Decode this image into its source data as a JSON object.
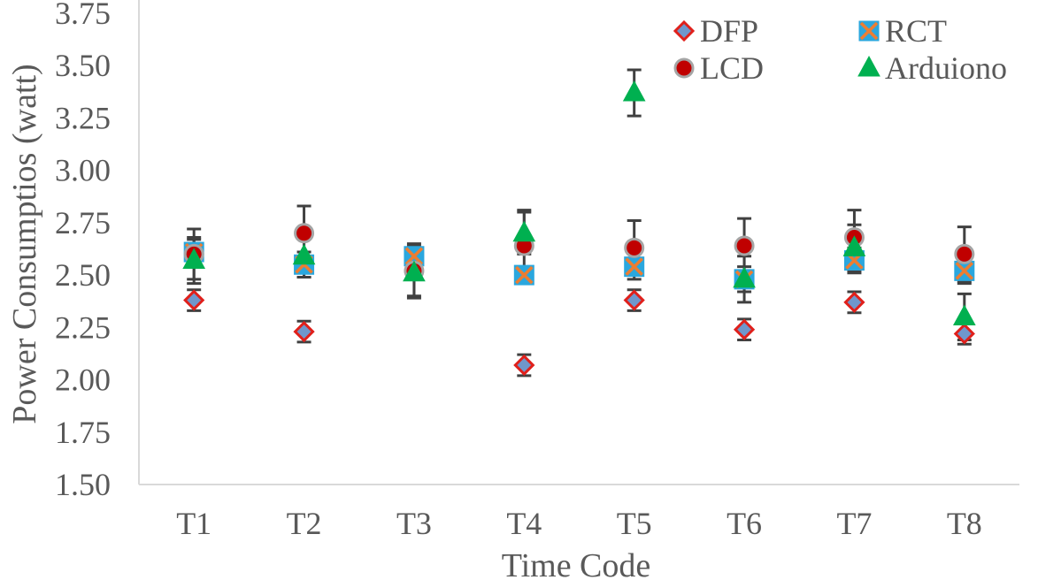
{
  "chart_data": {
    "type": "scatter",
    "title": "",
    "xlabel": "Time Code",
    "ylabel": "Power Consumptios (watt)",
    "categories": [
      "T1",
      "T2",
      "T3",
      "T4",
      "T5",
      "T6",
      "T7",
      "T8"
    ],
    "ylim": [
      1.5,
      3.75
    ],
    "yticks": [
      "1.50",
      "1.75",
      "2.00",
      "2.25",
      "2.50",
      "2.75",
      "3.00",
      "3.25",
      "3.50",
      "3.75"
    ],
    "grid": false,
    "legend_position": "top-right",
    "error_bar_color": "#404040",
    "series": [
      {
        "name": "DFP",
        "marker": "diamond",
        "fill": "#6f97cc",
        "stroke": "#e0201b",
        "values": [
          2.38,
          2.23,
          null,
          2.07,
          2.38,
          2.24,
          2.37,
          2.22
        ],
        "errors": [
          0.05,
          0.05,
          null,
          0.05,
          0.05,
          0.05,
          0.05,
          0.05
        ]
      },
      {
        "name": "RCT",
        "marker": "square-x",
        "fill": "#2aa7de",
        "stroke": "#ed7d31",
        "values": [
          2.61,
          2.55,
          2.59,
          2.5,
          2.54,
          2.48,
          2.57,
          2.52
        ],
        "errors": [
          0.06,
          0.06,
          0.06,
          null,
          0.06,
          0.06,
          0.06,
          0.06
        ]
      },
      {
        "name": "LCD",
        "marker": "circle",
        "fill": "#c00000",
        "stroke": "#a5a5a5",
        "values": [
          2.6,
          2.7,
          2.52,
          2.64,
          2.63,
          2.64,
          2.68,
          2.6
        ],
        "errors": [
          0.12,
          0.13,
          0.12,
          0.17,
          0.13,
          0.13,
          0.13,
          0.13
        ]
      },
      {
        "name": "Arduiono",
        "marker": "triangle",
        "fill": "#00b050",
        "stroke": "#00b050",
        "values": [
          2.57,
          2.59,
          2.51,
          2.7,
          3.37,
          2.48,
          2.63,
          2.3
        ],
        "errors": [
          0.11,
          0.1,
          0.12,
          0.1,
          0.11,
          0.11,
          0.11,
          0.11
        ]
      }
    ]
  }
}
